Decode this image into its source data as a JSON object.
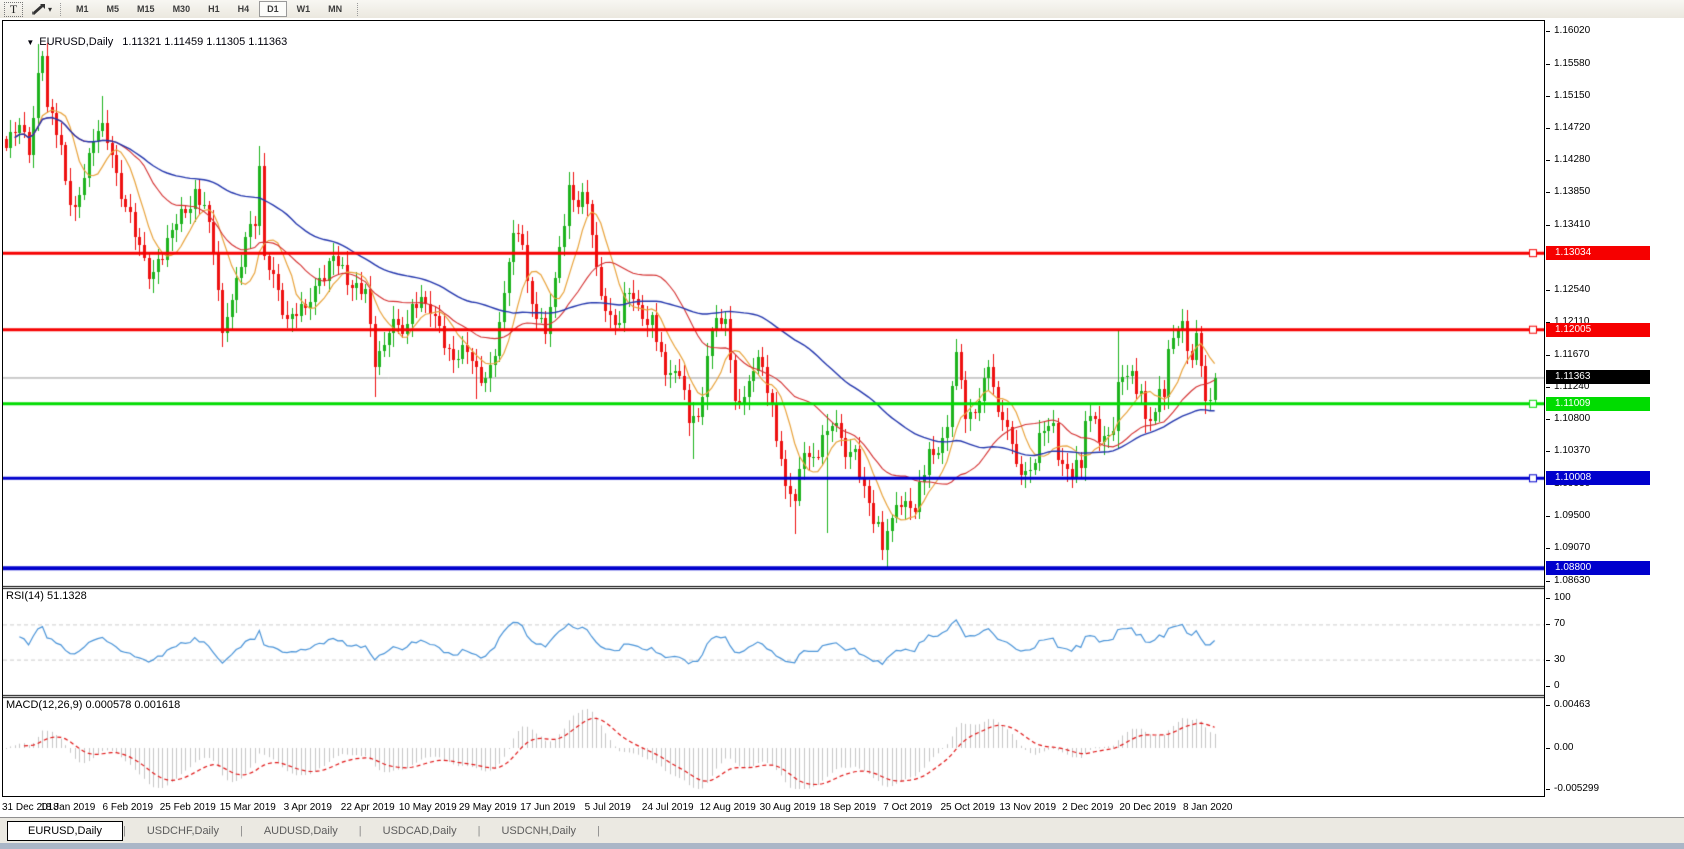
{
  "toolbar": {
    "text_tool_glyph": "T",
    "caret_glyph": "▾",
    "timeframes": [
      "M1",
      "M5",
      "M15",
      "M30",
      "H1",
      "H4",
      "D1",
      "W1",
      "MN"
    ],
    "active_timeframe": "D1"
  },
  "chart": {
    "collapse_glyph": "▼",
    "title": "EURUSD,Daily",
    "ohlc_display": "1.11321 1.11459 1.11305 1.11363",
    "price_axis_ticks": [
      "1.16020",
      "1.15580",
      "1.15150",
      "1.14720",
      "1.14280",
      "1.13850",
      "1.13410",
      "1.12980",
      "1.12540",
      "1.12110",
      "1.11670",
      "1.11240",
      "1.10800",
      "1.10370",
      "1.09930",
      "1.09500",
      "1.09070",
      "1.08630"
    ],
    "hlines": [
      {
        "label": "1.13034",
        "price": 1.13034,
        "color": "#f60000",
        "text_color": "#ffffff",
        "width": 3,
        "handle": true
      },
      {
        "label": "1.12005",
        "price": 1.12005,
        "color": "#f60000",
        "text_color": "#ffffff",
        "width": 3,
        "handle": true
      },
      {
        "label": "1.11009",
        "price": 1.11009,
        "color": "#00dc00",
        "text_color": "#ffffff",
        "width": 3,
        "handle": true
      },
      {
        "label": "1.10008",
        "price": 1.10008,
        "color": "#0000cd",
        "text_color": "#ffffff",
        "width": 3,
        "handle": true
      },
      {
        "label": "1.08800",
        "price": 1.088,
        "color": "#0000cd",
        "text_color": "#ffffff",
        "width": 4,
        "handle": false
      }
    ],
    "current_price": {
      "label": "1.11363",
      "price": 1.11363,
      "bg": "#000000",
      "text_color": "#ffffff"
    },
    "date_labels": [
      "31 Dec 2018",
      "18 Jan 2019",
      "6 Feb 2019",
      "25 Feb 2019",
      "15 Mar 2019",
      "3 Apr 2019",
      "22 Apr 2019",
      "10 May 2019",
      "29 May 2019",
      "17 Jun 2019",
      "5 Jul 2019",
      "24 Jul 2019",
      "12 Aug 2019",
      "30 Aug 2019",
      "18 Sep 2019",
      "7 Oct 2019",
      "25 Oct 2019",
      "13 Nov 2019",
      "2 Dec 2019",
      "20 Dec 2019",
      "8 Jan 2020"
    ]
  },
  "rsi": {
    "label": "RSI(14) 51.1328",
    "period": 14,
    "current_value": 51.1328,
    "ticks": [
      "100",
      "70",
      "30",
      "0"
    ],
    "levels": [
      70,
      30
    ]
  },
  "macd": {
    "label": "MACD(12,26,9) 0.000578 0.001618",
    "fast": 12,
    "slow": 26,
    "signal": 9,
    "current_macd": 0.000578,
    "current_signal": 0.001618,
    "ticks": [
      "0.00463",
      "0.00",
      "-0.005299"
    ]
  },
  "tabs": [
    {
      "label": "EURUSD,Daily",
      "active": true
    },
    {
      "label": "USDCHF,Daily",
      "active": false
    },
    {
      "label": "AUDUSD,Daily",
      "active": false
    },
    {
      "label": "USDCAD,Daily",
      "active": false
    },
    {
      "label": "USDCNH,Daily",
      "active": false
    }
  ],
  "chart_data": {
    "type": "candlestick",
    "symbol": "EURUSD",
    "timeframe": "Daily",
    "x_range": [
      "31 Dec 2018",
      "10 Jan 2020"
    ],
    "price_axis": {
      "top_value": 1.1602,
      "bottom_value": 1.0863
    },
    "last_ohlc": {
      "open": 1.11321,
      "high": 1.11459,
      "low": 1.11305,
      "close": 1.11363
    },
    "bar_count": 263,
    "close_anchors": [
      [
        0,
        1.1445
      ],
      [
        3,
        1.1475
      ],
      [
        5,
        1.1435
      ],
      [
        7,
        1.1545
      ],
      [
        8,
        1.1568
      ],
      [
        9,
        1.15
      ],
      [
        11,
        1.1462
      ],
      [
        13,
        1.14
      ],
      [
        15,
        1.1365
      ],
      [
        18,
        1.1438
      ],
      [
        21,
        1.1478
      ],
      [
        23,
        1.1435
      ],
      [
        26,
        1.1365
      ],
      [
        28,
        1.1325
      ],
      [
        31,
        1.1268
      ],
      [
        33,
        1.1295
      ],
      [
        36,
        1.1335
      ],
      [
        39,
        1.1358
      ],
      [
        41,
        1.139
      ],
      [
        43,
        1.1368
      ],
      [
        45,
        1.1305
      ],
      [
        47,
        1.1196
      ],
      [
        49,
        1.124
      ],
      [
        52,
        1.1325
      ],
      [
        54,
        1.134
      ],
      [
        55,
        1.142
      ],
      [
        56,
        1.13
      ],
      [
        58,
        1.1275
      ],
      [
        61,
        1.1215
      ],
      [
        65,
        1.123
      ],
      [
        68,
        1.127
      ],
      [
        71,
        1.13
      ],
      [
        74,
        1.126
      ],
      [
        78,
        1.1255
      ],
      [
        80,
        1.115
      ],
      [
        82,
        1.118
      ],
      [
        84,
        1.1215
      ],
      [
        86,
        1.1195
      ],
      [
        88,
        1.1235
      ],
      [
        91,
        1.1235
      ],
      [
        94,
        1.1205
      ],
      [
        97,
        1.116
      ],
      [
        100,
        1.117
      ],
      [
        102,
        1.115
      ],
      [
        104,
        1.1135
      ],
      [
        106,
        1.1165
      ],
      [
        108,
        1.125
      ],
      [
        110,
        1.133
      ],
      [
        112,
        1.1315
      ],
      [
        114,
        1.1235
      ],
      [
        117,
        1.1195
      ],
      [
        119,
        1.127
      ],
      [
        122,
        1.1395
      ],
      [
        124,
        1.1365
      ],
      [
        126,
        1.137
      ],
      [
        128,
        1.1285
      ],
      [
        130,
        1.1225
      ],
      [
        133,
        1.121
      ],
      [
        135,
        1.125
      ],
      [
        138,
        1.1215
      ],
      [
        140,
        1.122
      ],
      [
        143,
        1.114
      ],
      [
        145,
        1.1145
      ],
      [
        147,
        1.112
      ],
      [
        148,
        1.1075
      ],
      [
        149,
        1.1085
      ],
      [
        151,
        1.111
      ],
      [
        153,
        1.12
      ],
      [
        156,
        1.1215
      ],
      [
        158,
        1.1105
      ],
      [
        160,
        1.111
      ],
      [
        162,
        1.1145
      ],
      [
        164,
        1.115
      ],
      [
        166,
        1.11
      ],
      [
        169,
        1.099
      ],
      [
        171,
        1.097
      ],
      [
        173,
        1.1035
      ],
      [
        175,
        1.103
      ],
      [
        178,
        1.1065
      ],
      [
        180,
        1.1075
      ],
      [
        182,
        1.103
      ],
      [
        184,
        1.104
      ],
      [
        186,
        1.099
      ],
      [
        188,
        1.094
      ],
      [
        190,
        1.0905
      ],
      [
        191,
        1.093
      ],
      [
        193,
        1.0965
      ],
      [
        195,
        1.097
      ],
      [
        197,
        1.0955
      ],
      [
        199,
        1.1005
      ],
      [
        200,
        1.104
      ],
      [
        202,
        1.1035
      ],
      [
        204,
        1.107
      ],
      [
        205,
        1.1125
      ],
      [
        206,
        1.117
      ],
      [
        208,
        1.108
      ],
      [
        211,
        1.1105
      ],
      [
        213,
        1.115
      ],
      [
        215,
        1.109
      ],
      [
        217,
        1.107
      ],
      [
        219,
        1.102
      ],
      [
        221,
        1.101
      ],
      [
        223,
        1.1022
      ],
      [
        225,
        1.1065
      ],
      [
        227,
        1.1075
      ],
      [
        229,
        1.102
      ],
      [
        231,
        1.1
      ],
      [
        233,
        1.1015
      ],
      [
        234,
        1.1078
      ],
      [
        236,
        1.108
      ],
      [
        238,
        1.1058
      ],
      [
        240,
        1.1065
      ],
      [
        241,
        1.113
      ],
      [
        244,
        1.1145
      ],
      [
        246,
        1.1118
      ],
      [
        247,
        1.108
      ],
      [
        249,
        1.109
      ],
      [
        251,
        1.111
      ],
      [
        252,
        1.1175
      ],
      [
        254,
        1.12
      ],
      [
        255,
        1.1212
      ],
      [
        256,
        1.1172
      ],
      [
        257,
        1.116
      ],
      [
        258,
        1.1196
      ],
      [
        259,
        1.1152
      ],
      [
        260,
        1.1105
      ],
      [
        261,
        1.1106
      ],
      [
        262,
        1.1136
      ]
    ],
    "wick_overrides": {
      "7": {
        "high": 1.1585
      },
      "21": {
        "high": 1.1515
      },
      "47": {
        "low": 1.1177
      },
      "55": {
        "high": 1.1448
      },
      "80": {
        "low": 1.111
      },
      "102": {
        "low": 1.1107
      },
      "122": {
        "high": 1.1412
      },
      "149": {
        "low": 1.1027
      },
      "171": {
        "low": 1.0926
      },
      "178": {
        "low": 1.0927,
        "high": 1.1087
      },
      "191": {
        "low": 1.0879
      },
      "241": {
        "high": 1.12,
        "low": 1.104
      }
    },
    "overlays": [
      {
        "name": "MA-fast",
        "period": 8,
        "color": "#e8a33c"
      },
      {
        "name": "MA-mid",
        "period": 24,
        "color": "#d42f2f"
      },
      {
        "name": "MA-slow",
        "period": 55,
        "color": "#2336ad"
      }
    ],
    "colors": {
      "bull": "#1db31d",
      "bear": "#ee1111",
      "rsi": "#4a94d8",
      "macd_hist": "#c6c6c6",
      "macd_signal": "#e01818",
      "level_dash": "#cccccc",
      "current_line": "#999999"
    }
  }
}
